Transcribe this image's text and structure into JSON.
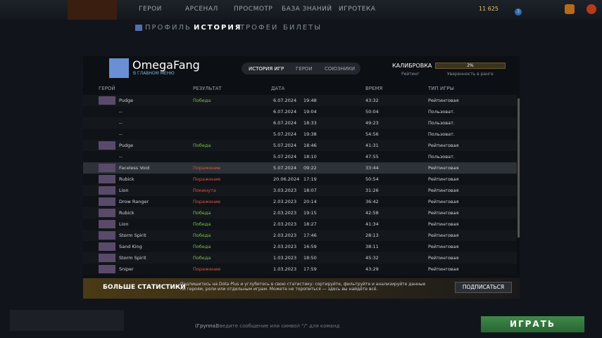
{
  "nav": {
    "items": [
      "ГЕРОИ",
      "АРСЕНАЛ",
      "ПРОСМОТР",
      "БАЗА ЗНАНИЙ",
      "ИГРОТЕКА"
    ],
    "currency": "11 625",
    "badge": "3"
  },
  "subnav": {
    "items": [
      "ПРОФИЛЬ",
      "ИСТОРИЯ",
      "ТРОФЕИ",
      "БИЛЕТЫ"
    ],
    "active": 1
  },
  "profile": {
    "name": "OmegaFang",
    "status": "В ГЛАВНОМ МЕНЮ",
    "tabs": [
      "ИСТОРИЯ ИГР",
      "ГЕРОИ",
      "СОЮЗНИКИ"
    ],
    "calibration": "КАЛИБРОВКА",
    "rating": "Рейтинг",
    "confidence": "2%",
    "confidence_label": "Уверенность в ранге"
  },
  "table": {
    "headers": [
      "ГЕРОЙ",
      "РЕЗУЛЬТАТ",
      "ДАТА",
      "ВРЕМЯ",
      "ТИП ИГРЫ"
    ],
    "selected_row": 6,
    "rows": [
      {
        "hero": "Pudge",
        "result": "Победа",
        "result_color": "#7cc24a",
        "date": "6.07.2024",
        "time": "19:48",
        "duration": "43:32",
        "type": "Рейтинговая"
      },
      {
        "hero": "--",
        "date": "6.07.2024",
        "time": "19:04",
        "duration": "50:04",
        "type": "Пользоват."
      },
      {
        "hero": "--",
        "date": "6.07.2024",
        "time": "18:33",
        "duration": "49:23",
        "type": "Пользоват."
      },
      {
        "hero": "--",
        "date": "5.07.2024",
        "time": "19:38",
        "duration": "54:56",
        "type": "Пользоват."
      },
      {
        "hero": "Pudge",
        "result": "Победа",
        "result_color": "#7cc24a",
        "date": "5.07.2024",
        "time": "18:46",
        "duration": "41:31",
        "type": "Рейтинговая"
      },
      {
        "hero": "--",
        "date": "5.07.2024",
        "time": "18:10",
        "duration": "47:55",
        "type": "Пользоват."
      },
      {
        "hero": "Faceless Void",
        "result": "Поражение",
        "result_color": "#e0533c",
        "date": "5.07.2024",
        "time": "09:22",
        "duration": "33:44",
        "type": "Рейтинговая"
      },
      {
        "hero": "Rubick",
        "result": "Поражение",
        "result_color": "#e0533c",
        "date": "20.06.2024",
        "time": "17:19",
        "duration": "50:54",
        "type": "Рейтинговая"
      },
      {
        "hero": "Lion",
        "result": "Покинута",
        "result_color": "#e0533c",
        "date": "3.03.2023",
        "time": "18:07",
        "duration": "31:26",
        "type": "Рейтинговая"
      },
      {
        "hero": "Drow Ranger",
        "result": "Поражение",
        "result_color": "#e0533c",
        "date": "2.03.2023",
        "time": "20:14",
        "duration": "36:42",
        "type": "Рейтинговая"
      },
      {
        "hero": "Rubick",
        "result": "Победа",
        "result_color": "#7cc24a",
        "date": "2.03.2023",
        "time": "19:15",
        "duration": "42:58",
        "type": "Рейтинговая"
      },
      {
        "hero": "Lion",
        "result": "Победа",
        "result_color": "#7cc24a",
        "date": "2.03.2023",
        "time": "18:27",
        "duration": "41:34",
        "type": "Рейтинговая"
      },
      {
        "hero": "Storm Spirit",
        "result": "Победа",
        "result_color": "#7cc24a",
        "date": "2.03.2023",
        "time": "17:46",
        "duration": "28:13",
        "type": "Рейтинговая"
      },
      {
        "hero": "Sand King",
        "result": "Победа",
        "result_color": "#7cc24a",
        "date": "2.03.2023",
        "time": "16:59",
        "duration": "38:11",
        "type": "Рейтинговая"
      },
      {
        "hero": "Storm Spirit",
        "result": "Победа",
        "result_color": "#7cc24a",
        "date": "1.03.2023",
        "time": "18:50",
        "duration": "45:32",
        "type": "Рейтинговая"
      },
      {
        "hero": "Sniper",
        "result": "Поражение",
        "result_color": "#e0533c",
        "date": "1.03.2023",
        "time": "17:59",
        "duration": "43:29",
        "type": "Рейтинговая"
      }
    ]
  },
  "banner": {
    "title": "БОЛЬШЕ СТАТИСТИКИ",
    "text": "Подпишитесь на Dota Plus и углубитесь в свою статистику: сортируйте, фильтруйте и анализируйте данные по героям, роли или отдельным играм. Можете не торопиться — здесь вы найдёте всё.",
    "button": "ПОДПИСАТЬСЯ"
  },
  "chat": {
    "channel": "(Группа):",
    "placeholder": "Введите сообщение или символ \"/\" для команд"
  },
  "play": "ИГРАТЬ"
}
